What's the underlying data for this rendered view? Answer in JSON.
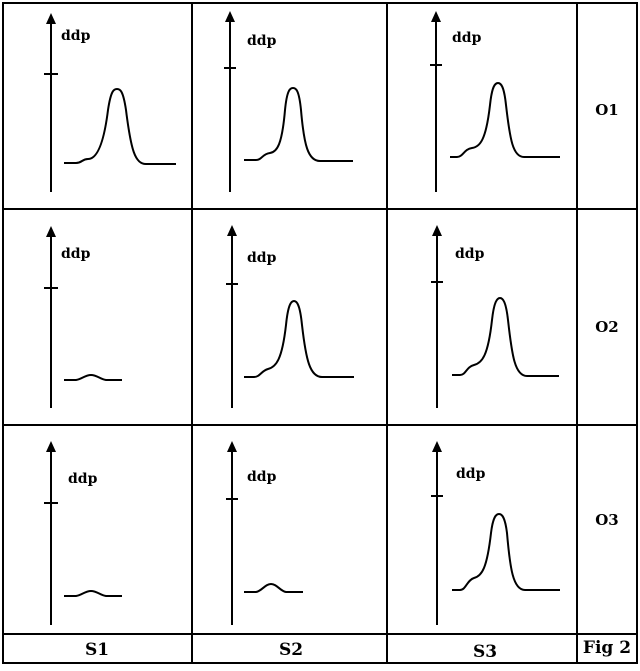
{
  "figure": {
    "axis_label": "ddp",
    "columns": [
      "S1",
      "S2",
      "S3"
    ],
    "rows": [
      "O1",
      "O2",
      "O3"
    ],
    "caption": "Fig 2"
  }
}
